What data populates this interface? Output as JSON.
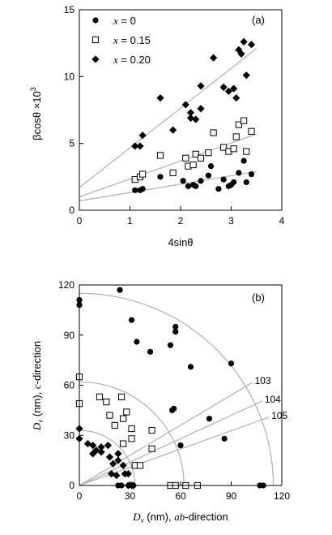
{
  "chart_data": [
    {
      "type": "scatter",
      "panel_label": "(a)",
      "xlabel": "4sinθ",
      "ylabel": "βcosθ ×10",
      "ylabel_exp": "3",
      "xlim": [
        0,
        4
      ],
      "ylim": [
        0,
        15
      ],
      "xticks": [
        "0",
        "1",
        "2",
        "3",
        "4"
      ],
      "yticks": [
        "0",
        "5",
        "10",
        "15"
      ],
      "legend_position": "top-left",
      "series": [
        {
          "name": "x = 0",
          "legend_var": "x",
          "legend_val": " = 0",
          "marker": "filled-circle",
          "points": [
            [
              1.1,
              1.5
            ],
            [
              1.2,
              1.5
            ],
            [
              1.25,
              1.6
            ],
            [
              1.6,
              2.5
            ],
            [
              2.05,
              2.2
            ],
            [
              2.15,
              1.8
            ],
            [
              2.25,
              1.9
            ],
            [
              2.3,
              1.8
            ],
            [
              2.4,
              2.2
            ],
            [
              2.55,
              2.6
            ],
            [
              2.6,
              3.3
            ],
            [
              2.75,
              1.6
            ],
            [
              2.85,
              2.3
            ],
            [
              2.95,
              1.8
            ],
            [
              3.0,
              1.9
            ],
            [
              3.05,
              2.1
            ],
            [
              3.15,
              2.8
            ],
            [
              3.25,
              3.7
            ],
            [
              3.3,
              2.1
            ],
            [
              3.4,
              2.7
            ]
          ],
          "fit": [
            [
              0,
              0.7
            ],
            [
              3.5,
              2.9
            ]
          ]
        },
        {
          "name": "x = 0.15",
          "legend_var": "x",
          "legend_val": " = 0.15",
          "marker": "open-square",
          "points": [
            [
              1.1,
              2.3
            ],
            [
              1.2,
              2.5
            ],
            [
              1.25,
              2.7
            ],
            [
              1.6,
              4.1
            ],
            [
              1.85,
              2.8
            ],
            [
              2.1,
              3.9
            ],
            [
              2.15,
              3.3
            ],
            [
              2.25,
              3.4
            ],
            [
              2.3,
              4.2
            ],
            [
              2.4,
              3.9
            ],
            [
              2.55,
              4.3
            ],
            [
              2.65,
              5.8
            ],
            [
              2.85,
              4.7
            ],
            [
              2.95,
              4.4
            ],
            [
              3.05,
              4.6
            ],
            [
              3.1,
              5.5
            ],
            [
              3.15,
              6.4
            ],
            [
              3.25,
              6.7
            ],
            [
              3.3,
              4.4
            ],
            [
              3.4,
              5.9
            ]
          ],
          "fit": [
            [
              0,
              1.0
            ],
            [
              3.5,
              5.7
            ]
          ]
        },
        {
          "name": "x = 0.20",
          "legend_var": "x",
          "legend_val": " = 0.20",
          "marker": "filled-diamond",
          "points": [
            [
              1.1,
              4.8
            ],
            [
              1.2,
              4.8
            ],
            [
              1.25,
              5.6
            ],
            [
              1.6,
              8.4
            ],
            [
              1.85,
              6.0
            ],
            [
              2.1,
              7.9
            ],
            [
              2.2,
              7.3
            ],
            [
              2.2,
              6.9
            ],
            [
              2.3,
              6.8
            ],
            [
              2.4,
              7.6
            ],
            [
              2.4,
              9.3
            ],
            [
              2.65,
              11.4
            ],
            [
              2.85,
              9.2
            ],
            [
              2.95,
              8.9
            ],
            [
              3.05,
              9.1
            ],
            [
              3.1,
              8.4
            ],
            [
              3.15,
              12.0
            ],
            [
              3.2,
              11.7
            ],
            [
              3.25,
              12.6
            ],
            [
              3.3,
              10.1
            ],
            [
              3.4,
              12.4
            ]
          ],
          "fit": [
            [
              0,
              1.7
            ],
            [
              3.5,
              12.1
            ]
          ]
        }
      ]
    },
    {
      "type": "scatter",
      "panel_label": "(b)",
      "xlabel_sym": "D",
      "xlabel_sub": "v",
      "xlabel_rest": " (nm), ",
      "xlabel_dir": "ab",
      "xlabel_tail": "-direction",
      "ylabel_sym": "D",
      "ylabel_sub": "v",
      "ylabel_rest": " (nm), ",
      "ylabel_dir": "c",
      "ylabel_tail": "-direction",
      "xlim": [
        0,
        120
      ],
      "ylim": [
        0,
        120
      ],
      "xticks": [
        "0",
        "30",
        "60",
        "90",
        "120"
      ],
      "yticks": [
        "0",
        "30",
        "60",
        "90",
        "120"
      ],
      "arcs": [
        115,
        62,
        33
      ],
      "direction_lines": [
        {
          "label": "103",
          "angle_deg": 31
        },
        {
          "label": "104",
          "angle_deg": 25
        },
        {
          "label": "105",
          "angle_deg": 20
        }
      ],
      "series": [
        {
          "marker": "filled-circle",
          "points": [
            [
              0,
              111
            ],
            [
              0,
              108
            ],
            [
              23,
              0
            ],
            [
              25,
              0
            ],
            [
              31,
              0
            ],
            [
              32,
              0
            ],
            [
              24,
              117
            ],
            [
              31,
              99
            ],
            [
              34,
              86
            ],
            [
              42,
              80
            ],
            [
              54,
              84
            ],
            [
              55,
              45
            ],
            [
              56,
              46
            ],
            [
              57,
              92
            ],
            [
              57,
              95
            ],
            [
              60,
              24
            ],
            [
              66,
              71
            ],
            [
              77,
              40
            ],
            [
              86,
              28
            ],
            [
              90,
              73
            ],
            [
              107,
              0
            ],
            [
              109,
              0
            ]
          ]
        },
        {
          "marker": "open-square",
          "points": [
            [
              0,
              65
            ],
            [
              0,
              49
            ],
            [
              12,
              53
            ],
            [
              16,
              50
            ],
            [
              18,
              42
            ],
            [
              21,
              36
            ],
            [
              25,
              53
            ],
            [
              26,
              25
            ],
            [
              26,
              40
            ],
            [
              28,
              44
            ],
            [
              31,
              34
            ],
            [
              31,
              28
            ],
            [
              33,
              12
            ],
            [
              36,
              12
            ],
            [
              43,
              22
            ],
            [
              43,
              33
            ],
            [
              54,
              0
            ],
            [
              57,
              0
            ],
            [
              63,
              0
            ],
            [
              70,
              0
            ]
          ]
        },
        {
          "marker": "filled-diamond",
          "points": [
            [
              0,
              34
            ],
            [
              0,
              28
            ],
            [
              5,
              25
            ],
            [
              8,
              24
            ],
            [
              8,
              19
            ],
            [
              10,
              21
            ],
            [
              13,
              20
            ],
            [
              13,
              23
            ],
            [
              17,
              24
            ],
            [
              18,
              17
            ],
            [
              19,
              7
            ],
            [
              20,
              13
            ],
            [
              22,
              6
            ],
            [
              23,
              15
            ],
            [
              23,
              19
            ],
            [
              26,
              12
            ],
            [
              27,
              7
            ],
            [
              29,
              7
            ],
            [
              29,
              0
            ],
            [
              31,
              0
            ],
            [
              32,
              0
            ]
          ]
        }
      ]
    }
  ]
}
